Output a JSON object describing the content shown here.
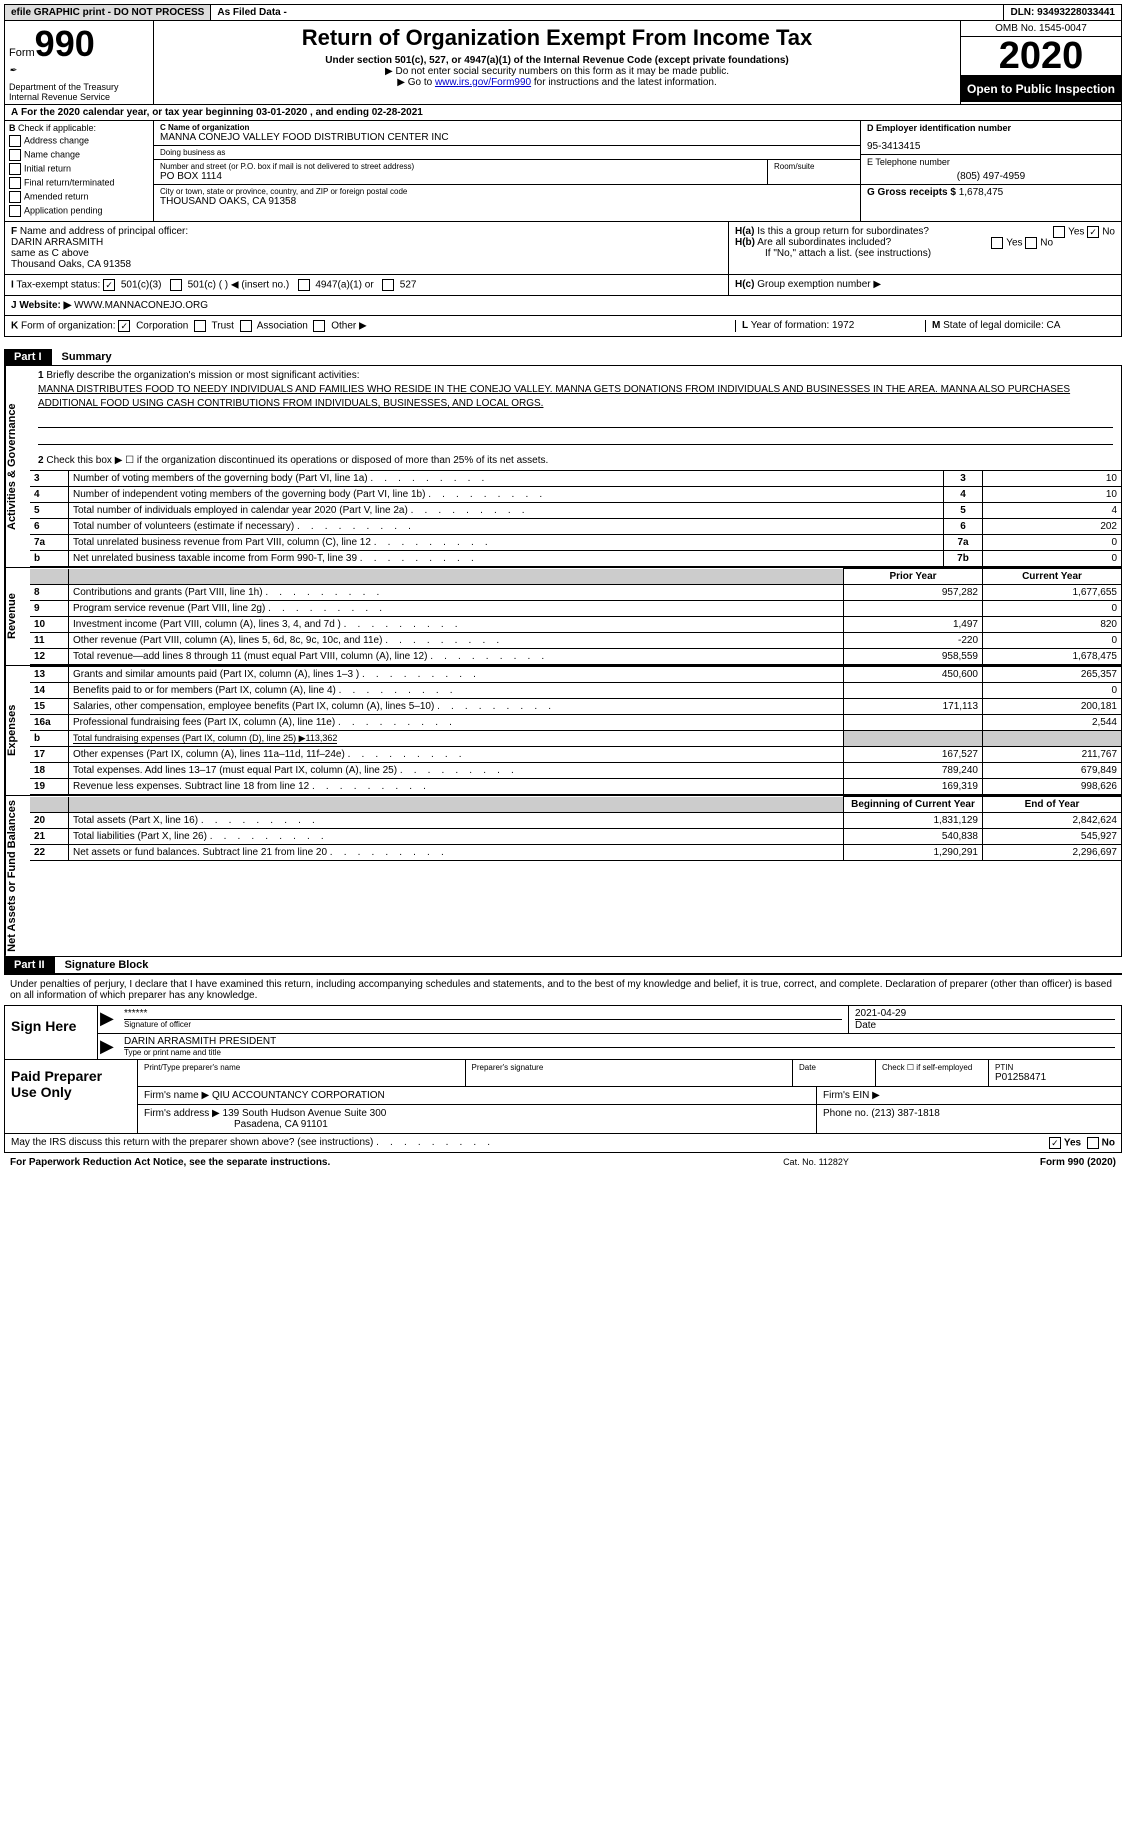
{
  "topBar": {
    "efile": "efile GRAPHIC print - DO NOT PROCESS",
    "filed": "As Filed Data -",
    "dln": "DLN: 93493228033441"
  },
  "header": {
    "formPrefix": "Form",
    "formNumber": "990",
    "dept": "Department of the Treasury",
    "irs": "Internal Revenue Service",
    "title": "Return of Organization Exempt From Income Tax",
    "subtitle": "Under section 501(c), 527, or 4947(a)(1) of the Internal Revenue Code (except private foundations)",
    "note1": "▶ Do not enter social security numbers on this form as it may be made public.",
    "note2pre": "▶ Go to ",
    "note2link": "www.irs.gov/Form990",
    "note2post": " for instructions and the latest information.",
    "omb": "OMB No. 1545-0047",
    "year": "2020",
    "openPub": "Open to Public Inspection"
  },
  "lineA": {
    "label": "A",
    "text": "For the 2020 calendar year, or tax year beginning 03-01-2020   , and ending 02-28-2021"
  },
  "colB": {
    "label": "B",
    "check": "Check if applicable:",
    "items": [
      "Address change",
      "Name change",
      "Initial return",
      "Final return/terminated",
      "Amended return",
      "Application pending"
    ]
  },
  "colC": {
    "nameLabel": "C Name of organization",
    "name": "MANNA CONEJO VALLEY FOOD DISTRIBUTION CENTER INC",
    "dbaLabel": "Doing business as",
    "dba": "",
    "addrLabel": "Number and street (or P.O. box if mail is not delivered to street address)",
    "addr": "PO BOX 1114",
    "roomLabel": "Room/suite",
    "cityLabel": "City or town, state or province, country, and ZIP or foreign postal code",
    "city": "THOUSAND OAKS, CA  91358"
  },
  "colD": {
    "einLabel": "D Employer identification number",
    "ein": "95-3413415",
    "phoneLabel": "E Telephone number",
    "phone": "(805) 497-4959",
    "grossLabel": "G Gross receipts $",
    "gross": "1,678,475"
  },
  "rowF": {
    "label": "F",
    "text": "Name and address of principal officer:",
    "name": "DARIN ARRASMITH",
    "addr1": "same as C above",
    "addr2": "Thousand Oaks, CA  91358"
  },
  "rowH": {
    "haLabel": "H(a)",
    "haText": "Is this a group return for subordinates?",
    "haYes": "Yes",
    "haNo": "No",
    "hbLabel": "H(b)",
    "hbText": "Are all subordinates included?",
    "hbNote": "If \"No,\" attach a list. (see instructions)",
    "hcLabel": "H(c)",
    "hcText": "Group exemption number ▶"
  },
  "rowI": {
    "label": "I",
    "text": "Tax-exempt status:",
    "opt1": "501(c)(3)",
    "opt2": "501(c) (   ) ◀ (insert no.)",
    "opt3": "4947(a)(1) or",
    "opt4": "527"
  },
  "rowJ": {
    "label": "J",
    "text": "Website: ▶",
    "url": "WWW.MANNACONEJO.ORG"
  },
  "rowK": {
    "label": "K",
    "text": "Form of organization:",
    "opts": [
      "Corporation",
      "Trust",
      "Association",
      "Other ▶"
    ],
    "lLabel": "L",
    "lText": "Year of formation: 1972",
    "mLabel": "M",
    "mText": "State of legal domicile: CA"
  },
  "partI": {
    "label": "Part I",
    "title": "Summary"
  },
  "sideLabels": {
    "act": "Activities & Governance",
    "rev": "Revenue",
    "exp": "Expenses",
    "net": "Net Assets or Fund Balances"
  },
  "summary": {
    "line1Label": "1",
    "line1Text": "Briefly describe the organization's mission or most significant activities:",
    "mission": "MANNA DISTRIBUTES FOOD TO NEEDY INDIVIDUALS AND FAMILIES WHO RESIDE IN THE CONEJO VALLEY. MANNA GETS DONATIONS FROM INDIVIDUALS AND BUSINESSES IN THE AREA. MANNA ALSO PURCHASES ADDITIONAL FOOD USING CASH CONTRIBUTIONS FROM INDIVIDUALS, BUSINESSES, AND LOCAL ORGS.",
    "line2Label": "2",
    "line2Text": "Check this box ▶ ☐ if the organization discontinued its operations or disposed of more than 25% of its net assets.",
    "rows": [
      {
        "n": "3",
        "t": "Number of voting members of the governing body (Part VI, line 1a)",
        "b": "3",
        "v": "10"
      },
      {
        "n": "4",
        "t": "Number of independent voting members of the governing body (Part VI, line 1b)",
        "b": "4",
        "v": "10"
      },
      {
        "n": "5",
        "t": "Total number of individuals employed in calendar year 2020 (Part V, line 2a)",
        "b": "5",
        "v": "4"
      },
      {
        "n": "6",
        "t": "Total number of volunteers (estimate if necessary)",
        "b": "6",
        "v": "202"
      },
      {
        "n": "7a",
        "t": "Total unrelated business revenue from Part VIII, column (C), line 12",
        "b": "7a",
        "v": "0"
      },
      {
        "n": "b",
        "t": "Net unrelated business taxable income from Form 990-T, line 39",
        "b": "7b",
        "v": "0"
      }
    ],
    "yearHeaders": {
      "prior": "Prior Year",
      "current": "Current Year"
    },
    "revenue": [
      {
        "n": "8",
        "t": "Contributions and grants (Part VIII, line 1h)",
        "p": "957,282",
        "c": "1,677,655"
      },
      {
        "n": "9",
        "t": "Program service revenue (Part VIII, line 2g)",
        "p": "",
        "c": "0"
      },
      {
        "n": "10",
        "t": "Investment income (Part VIII, column (A), lines 3, 4, and 7d )",
        "p": "1,497",
        "c": "820"
      },
      {
        "n": "11",
        "t": "Other revenue (Part VIII, column (A), lines 5, 6d, 8c, 9c, 10c, and 11e)",
        "p": "-220",
        "c": "0"
      },
      {
        "n": "12",
        "t": "Total revenue—add lines 8 through 11 (must equal Part VIII, column (A), line 12)",
        "p": "958,559",
        "c": "1,678,475"
      }
    ],
    "expenses": [
      {
        "n": "13",
        "t": "Grants and similar amounts paid (Part IX, column (A), lines 1–3 )",
        "p": "450,600",
        "c": "265,357"
      },
      {
        "n": "14",
        "t": "Benefits paid to or for members (Part IX, column (A), line 4)",
        "p": "",
        "c": "0"
      },
      {
        "n": "15",
        "t": "Salaries, other compensation, employee benefits (Part IX, column (A), lines 5–10)",
        "p": "171,113",
        "c": "200,181"
      },
      {
        "n": "16a",
        "t": "Professional fundraising fees (Part IX, column (A), line 11e)",
        "p": "",
        "c": "2,544"
      },
      {
        "n": "b",
        "t": "Total fundraising expenses (Part IX, column (D), line 25) ▶113,362",
        "sub": true
      },
      {
        "n": "17",
        "t": "Other expenses (Part IX, column (A), lines 11a–11d, 11f–24e)",
        "p": "167,527",
        "c": "211,767"
      },
      {
        "n": "18",
        "t": "Total expenses. Add lines 13–17 (must equal Part IX, column (A), line 25)",
        "p": "789,240",
        "c": "679,849"
      },
      {
        "n": "19",
        "t": "Revenue less expenses. Subtract line 18 from line 12",
        "p": "169,319",
        "c": "998,626"
      }
    ],
    "netHeaders": {
      "beg": "Beginning of Current Year",
      "end": "End of Year"
    },
    "netassets": [
      {
        "n": "20",
        "t": "Total assets (Part X, line 16)",
        "p": "1,831,129",
        "c": "2,842,624"
      },
      {
        "n": "21",
        "t": "Total liabilities (Part X, line 26)",
        "p": "540,838",
        "c": "545,927"
      },
      {
        "n": "22",
        "t": "Net assets or fund balances. Subtract line 21 from line 20",
        "p": "1,290,291",
        "c": "2,296,697"
      }
    ]
  },
  "partII": {
    "label": "Part II",
    "title": "Signature Block",
    "intro": "Under penalties of perjury, I declare that I have examined this return, including accompanying schedules and statements, and to the best of my knowledge and belief, it is true, correct, and complete. Declaration of preparer (other than officer) is based on all information of which preparer has any knowledge."
  },
  "sign": {
    "label": "Sign Here",
    "sig": "******",
    "sigLabel": "Signature of officer",
    "date": "2021-04-29",
    "dateLabel": "Date",
    "name": "DARIN ARRASMITH  PRESIDENT",
    "nameLabel": "Type or print name and title"
  },
  "prep": {
    "label": "Paid Preparer Use Only",
    "h1": "Print/Type preparer's name",
    "h2": "Preparer's signature",
    "h3": "Date",
    "h4pre": "Check ☐ if self-employed",
    "h5": "PTIN",
    "ptin": "P01258471",
    "firmLabel": "Firm's name    ▶",
    "firm": "QIU ACCOUNTANCY CORPORATION",
    "einLabel": "Firm's EIN ▶",
    "addrLabel": "Firm's address ▶",
    "addr1": "139 South Hudson Avenue Suite 300",
    "addr2": "Pasadena, CA  91101",
    "phoneLabel": "Phone no.",
    "phone": "(213) 387-1818"
  },
  "footer": {
    "discuss": "May the IRS discuss this return with the preparer shown above? (see instructions)",
    "yes": "Yes",
    "no": "No",
    "pra": "For Paperwork Reduction Act Notice, see the separate instructions.",
    "cat": "Cat. No. 11282Y",
    "form": "Form 990 (2020)"
  }
}
